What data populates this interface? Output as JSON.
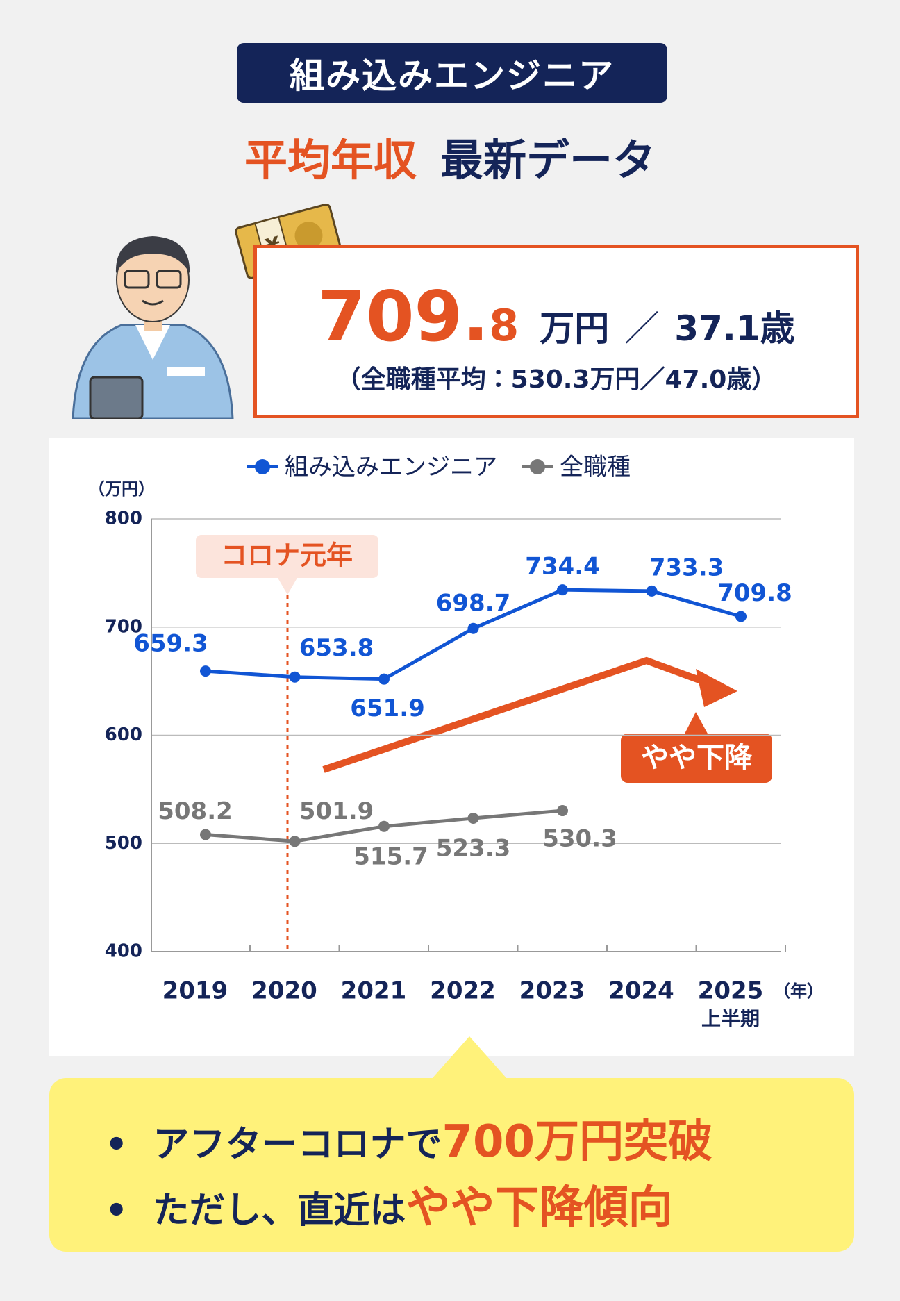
{
  "header": {
    "badge": "組み込みエンジニア",
    "title_highlight": "平均年収",
    "title_rest": "最新データ"
  },
  "summary": {
    "value_main": "709.",
    "value_decimal": "8",
    "unit": "万円",
    "separator": "／",
    "age": "37.1歳",
    "average": "（全職種平均：530.3万円／47.0歳）"
  },
  "chart_data": {
    "type": "line",
    "categories": [
      "2019",
      "2020",
      "2021",
      "2022",
      "2023",
      "2024",
      "2025"
    ],
    "category_sublabels": [
      null,
      null,
      null,
      null,
      null,
      null,
      "上半期"
    ],
    "x_unit": "（年）",
    "y_unit": "（万円）",
    "series": [
      {
        "name": "組み込みエンジニア",
        "color": "#1155d4",
        "values": [
          659.3,
          653.8,
          651.9,
          698.7,
          734.4,
          733.3,
          709.8
        ]
      },
      {
        "name": "全職種",
        "color": "#777777",
        "values": [
          508.2,
          501.9,
          515.7,
          523.3,
          530.3,
          null,
          null
        ]
      }
    ],
    "ylim": [
      400,
      800
    ],
    "yticks": [
      400,
      500,
      600,
      700,
      800
    ],
    "grid": true,
    "legend": "top",
    "annotations": [
      "コロナ元年",
      "やや下降"
    ]
  },
  "notes": [
    {
      "text": "アフターコロナで",
      "highlight": "700万円突破"
    },
    {
      "text": "ただし、直近は",
      "highlight": "やや下降傾向"
    }
  ]
}
